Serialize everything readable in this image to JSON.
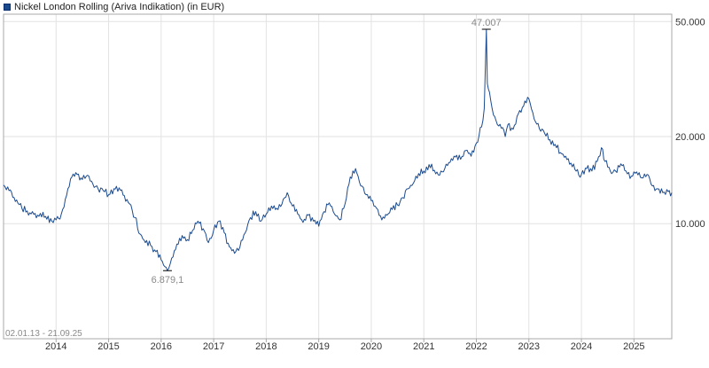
{
  "legend": {
    "label": "Nickel London Rolling (Ariva Indikation) (in EUR)"
  },
  "colors": {
    "line": "#1a4a8e",
    "grid": "#e2e2e2",
    "text": "#333333",
    "muted": "#8a8a8a",
    "frame": "#a8a8a8"
  },
  "chart_data": {
    "type": "line",
    "title": "",
    "series": [
      {
        "name": "Nickel London Rolling (Ariva Indikation) (in EUR)",
        "x": [
          2013.0,
          2013.08,
          2013.2,
          2013.35,
          2013.5,
          2013.65,
          2013.8,
          2013.92,
          2014.0,
          2014.1,
          2014.2,
          2014.3,
          2014.4,
          2014.5,
          2014.6,
          2014.7,
          2014.8,
          2014.9,
          2015.0,
          2015.1,
          2015.2,
          2015.3,
          2015.4,
          2015.5,
          2015.6,
          2015.7,
          2015.8,
          2015.9,
          2016.0,
          2016.07,
          2016.12,
          2016.2,
          2016.3,
          2016.4,
          2016.5,
          2016.6,
          2016.7,
          2016.8,
          2016.9,
          2017.0,
          2017.1,
          2017.2,
          2017.3,
          2017.42,
          2017.5,
          2017.6,
          2017.7,
          2017.8,
          2017.9,
          2018.0,
          2018.1,
          2018.2,
          2018.3,
          2018.4,
          2018.5,
          2018.6,
          2018.7,
          2018.8,
          2018.9,
          2019.0,
          2019.1,
          2019.2,
          2019.3,
          2019.4,
          2019.5,
          2019.6,
          2019.7,
          2019.8,
          2019.9,
          2020.0,
          2020.1,
          2020.2,
          2020.3,
          2020.4,
          2020.5,
          2020.6,
          2020.7,
          2020.8,
          2020.9,
          2021.0,
          2021.1,
          2021.2,
          2021.3,
          2021.4,
          2021.5,
          2021.6,
          2021.7,
          2021.8,
          2021.9,
          2022.0,
          2022.1,
          2022.15,
          2022.19,
          2022.21,
          2022.25,
          2022.3,
          2022.4,
          2022.5,
          2022.55,
          2022.6,
          2022.7,
          2022.8,
          2022.9,
          2023.0,
          2023.1,
          2023.2,
          2023.3,
          2023.4,
          2023.5,
          2023.6,
          2023.7,
          2023.8,
          2023.9,
          2024.0,
          2024.1,
          2024.2,
          2024.3,
          2024.38,
          2024.45,
          2024.55,
          2024.65,
          2024.75,
          2024.85,
          2024.95,
          2025.05,
          2025.15,
          2025.25,
          2025.35,
          2025.45,
          2025.55,
          2025.65,
          2025.72
        ],
        "values": [
          13600,
          13400,
          12300,
          11300,
          10900,
          10700,
          10600,
          10200,
          10300,
          10800,
          12500,
          14500,
          14800,
          14200,
          14700,
          13700,
          13200,
          13000,
          12600,
          13200,
          13300,
          12500,
          11700,
          10500,
          9200,
          8600,
          8400,
          8000,
          7500,
          7100,
          6879,
          7600,
          8500,
          9100,
          8800,
          9500,
          10200,
          9600,
          8600,
          9500,
          10200,
          9300,
          8300,
          8000,
          8300,
          9300,
          10500,
          11000,
          10200,
          10800,
          11500,
          11300,
          11700,
          12800,
          11500,
          10800,
          10100,
          10700,
          10200,
          9800,
          11000,
          11800,
          10800,
          10300,
          11700,
          14500,
          15500,
          13500,
          12600,
          12000,
          11300,
          10300,
          10700,
          11200,
          11600,
          12300,
          13200,
          13800,
          14900,
          15200,
          16000,
          15300,
          14700,
          15500,
          16300,
          17000,
          16700,
          17900,
          17100,
          19000,
          21600,
          25000,
          47007,
          30500,
          28500,
          25000,
          22000,
          21500,
          20000,
          22000,
          21200,
          24000,
          25500,
          27000,
          23000,
          21300,
          20500,
          19500,
          18800,
          17600,
          17100,
          16200,
          15200,
          14800,
          15500,
          15200,
          16400,
          18300,
          16400,
          15200,
          15200,
          16100,
          15200,
          14600,
          15100,
          14400,
          14800,
          13500,
          13200,
          12800,
          12900,
          12800
        ]
      }
    ],
    "x_ticks": [
      "2014",
      "2015",
      "2016",
      "2017",
      "2018",
      "2019",
      "2020",
      "2021",
      "2022",
      "2023",
      "2024",
      "2025"
    ],
    "x_tick_values": [
      2014,
      2015,
      2016,
      2017,
      2018,
      2019,
      2020,
      2021,
      2022,
      2023,
      2024,
      2025
    ],
    "xlim": [
      2013.0,
      2025.72
    ],
    "y_ticks": [
      "10.000",
      "20.000",
      "50.000"
    ],
    "y_tick_values": [
      10000,
      20000,
      50000
    ],
    "yscale": "log",
    "ylim": [
      4000,
      53000
    ],
    "grid": true,
    "legend_position": "top-left",
    "annotations": [
      {
        "label": "47.007",
        "x": 2022.19,
        "y": 47007,
        "kind": "max"
      },
      {
        "label": "6.879,1",
        "x": 2016.12,
        "y": 6879.1,
        "kind": "min"
      }
    ],
    "date_range": "02.01.13 - 21.09.25"
  }
}
